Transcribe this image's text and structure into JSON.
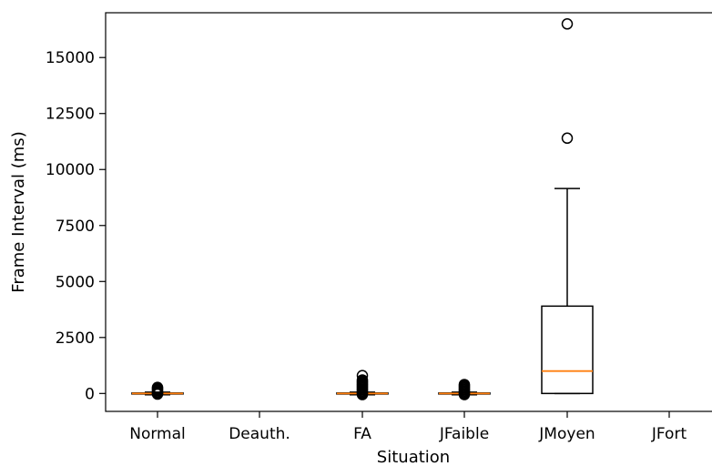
{
  "chart_data": {
    "type": "box",
    "xlabel": "Situation",
    "ylabel": "Frame Interval (ms)",
    "ylim": [
      -800,
      17000
    ],
    "yticks": [
      0,
      2500,
      5000,
      7500,
      10000,
      12500,
      15000
    ],
    "ytick_labels": [
      "0",
      "2500",
      "5000",
      "7500",
      "10000",
      "12500",
      "15000"
    ],
    "grid": false,
    "categories": [
      "Normal",
      "Deauth.",
      "FA",
      "JFaible",
      "JMoyen",
      "JFort"
    ],
    "boxes": [
      {
        "category": "Normal",
        "whisker_low": -60,
        "q1": -25,
        "median": 0,
        "q3": 25,
        "whisker_high": 60,
        "outliers": [
          -30,
          0,
          40,
          80,
          130,
          180,
          230,
          270
        ]
      },
      {
        "category": "Deauth.",
        "whisker_low": null,
        "q1": null,
        "median": null,
        "q3": null,
        "whisker_high": null,
        "outliers": []
      },
      {
        "category": "FA",
        "whisker_low": -60,
        "q1": -25,
        "median": 0,
        "q3": 25,
        "whisker_high": 60,
        "outliers": [
          -50,
          0,
          50,
          100,
          150,
          200,
          250,
          300,
          350,
          400,
          450,
          500,
          550,
          600,
          800
        ]
      },
      {
        "category": "JFaible",
        "whisker_low": -60,
        "q1": -25,
        "median": 0,
        "q3": 25,
        "whisker_high": 60,
        "outliers": [
          -50,
          0,
          50,
          100,
          150,
          200,
          250,
          300,
          350,
          400
        ]
      },
      {
        "category": "JMoyen",
        "whisker_low": 0,
        "q1": 0,
        "median": 1000,
        "q3": 3900,
        "whisker_high": 9150,
        "outliers": [
          11400,
          16500
        ]
      },
      {
        "category": "JFort",
        "whisker_low": null,
        "q1": null,
        "median": null,
        "q3": null,
        "whisker_high": null,
        "outliers": []
      }
    ],
    "colors": {
      "box": "#000000",
      "median": "#ff7f0e"
    }
  }
}
